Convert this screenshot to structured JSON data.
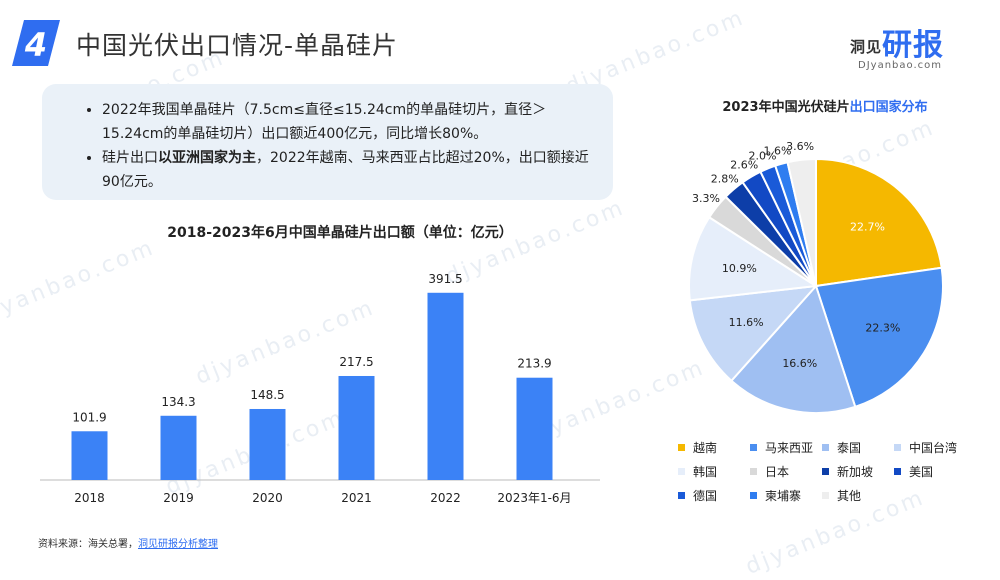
{
  "header": {
    "badge_number": "4",
    "title": "中国光伏出口情况-单晶硅片"
  },
  "logo": {
    "small": "洞见",
    "main": "研报",
    "sub": "DJyanbao.com"
  },
  "watermark": "djyanbao.com",
  "info": {
    "bullet1": "2022年我国单晶硅片（7.5cm≤直径≤15.24cm的单晶硅切片，直径＞15.24cm的单晶硅切片）出口额近400亿元，同比增长80%。",
    "bullet2_pre": "硅片出口",
    "bullet2_bold": "以亚洲国家为主",
    "bullet2_post": "，2022年越南、马来西亚占比超过20%，出口额接近90亿元。"
  },
  "source": {
    "label": "资料来源：海关总署，",
    "link": "洞见研报分析整理"
  },
  "chart_data": [
    {
      "type": "bar",
      "title": "2018-2023年6月中国单晶硅片出口额（单位：亿元）",
      "categories": [
        "2018",
        "2019",
        "2020",
        "2021",
        "2022",
        "2023年1-6月"
      ],
      "values": [
        101.9,
        134.3,
        148.5,
        217.5,
        391.5,
        213.9
      ],
      "ylim": [
        0,
        420
      ],
      "color": "#3b82f6",
      "grid": false
    },
    {
      "type": "pie",
      "title_pre": "2023年中国光伏硅片",
      "title_accent": "出口国家分布",
      "labels": [
        "越南",
        "马来西亚",
        "泰国",
        "中国台湾",
        "韩国",
        "日本",
        "新加坡",
        "美国",
        "德国",
        "柬埔寨",
        "其他"
      ],
      "values": [
        22.7,
        22.3,
        16.6,
        11.6,
        10.9,
        3.3,
        2.8,
        2.6,
        2.0,
        1.6,
        3.6
      ],
      "value_labels": [
        "22.7%",
        "22.3%",
        "16.6%",
        "11.6%",
        "10.9%",
        "3.3%",
        "2.8%",
        "2.6%",
        "2.0%",
        "1.6%",
        "3.6%"
      ],
      "colors": [
        "#f5b800",
        "#4a8ef0",
        "#9fbff2",
        "#c5d8f6",
        "#e6eefa",
        "#d9d9d9",
        "#0d3ea8",
        "#1249c4",
        "#1a5ad8",
        "#2f7df0",
        "#eeeeee"
      ],
      "legend_position": "bottom"
    }
  ]
}
